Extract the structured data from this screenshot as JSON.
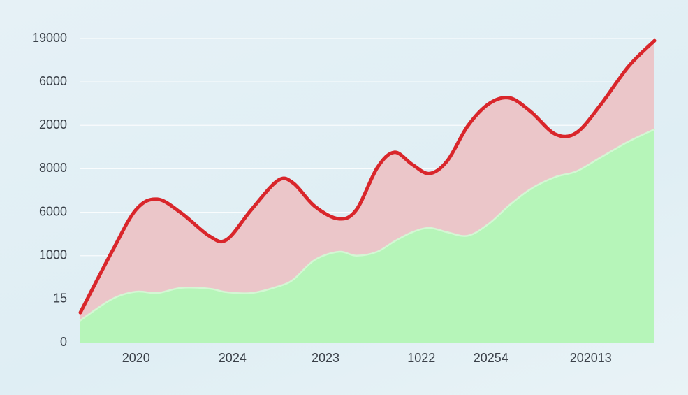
{
  "chart_data": {
    "type": "area",
    "x": [
      0,
      0.55,
      0.97,
      1.34,
      1.76,
      2.25,
      2.55,
      2.98,
      3.44,
      3.71,
      4.08,
      4.5,
      4.81,
      5.17,
      5.47,
      5.78,
      6.08,
      6.39,
      6.75,
      7.12,
      7.48,
      7.85,
      8.27,
      8.64,
      9.06,
      9.55,
      10
    ],
    "series": [
      {
        "color": "#d9262b",
        "fill": "#ebc6c9",
        "values": [
          0.69,
          2.09,
          3.06,
          3.3,
          2.98,
          2.45,
          2.37,
          3.06,
          3.73,
          3.67,
          3.14,
          2.85,
          3.06,
          4.02,
          4.38,
          4.1,
          3.89,
          4.18,
          4.99,
          5.5,
          5.63,
          5.31,
          4.8,
          4.83,
          5.47,
          6.36,
          6.95
        ]
      },
      {
        "color": "#d4f7d4",
        "fill": "#b6f5b9",
        "values": [
          0.51,
          1.0,
          1.17,
          1.14,
          1.26,
          1.24,
          1.16,
          1.14,
          1.29,
          1.45,
          1.9,
          2.09,
          2.0,
          2.09,
          2.33,
          2.54,
          2.64,
          2.54,
          2.46,
          2.74,
          3.17,
          3.54,
          3.81,
          3.94,
          4.26,
          4.63,
          4.91
        ]
      }
    ],
    "xlim": [
      0,
      10
    ],
    "xticks": [
      {
        "value": 0.97,
        "label": "2020"
      },
      {
        "value": 2.65,
        "label": "2024"
      },
      {
        "value": 4.27,
        "label": "2023"
      },
      {
        "value": 5.94,
        "label": "1022"
      },
      {
        "value": 7.15,
        "label": "20254"
      },
      {
        "value": 8.89,
        "label": "202013"
      }
    ],
    "ylim": [
      0,
      7
    ],
    "yticks": [
      0,
      {
        "value": 1,
        "label": "15"
      },
      {
        "value": 2,
        "label": "1000"
      },
      {
        "value": 3,
        "label": "6000"
      },
      {
        "value": 4,
        "label": "8000"
      },
      {
        "value": 5,
        "label": "2000"
      },
      {
        "value": 6,
        "label": "6000"
      },
      {
        "value": 7,
        "label": "19000"
      }
    ],
    "grid": true
  }
}
